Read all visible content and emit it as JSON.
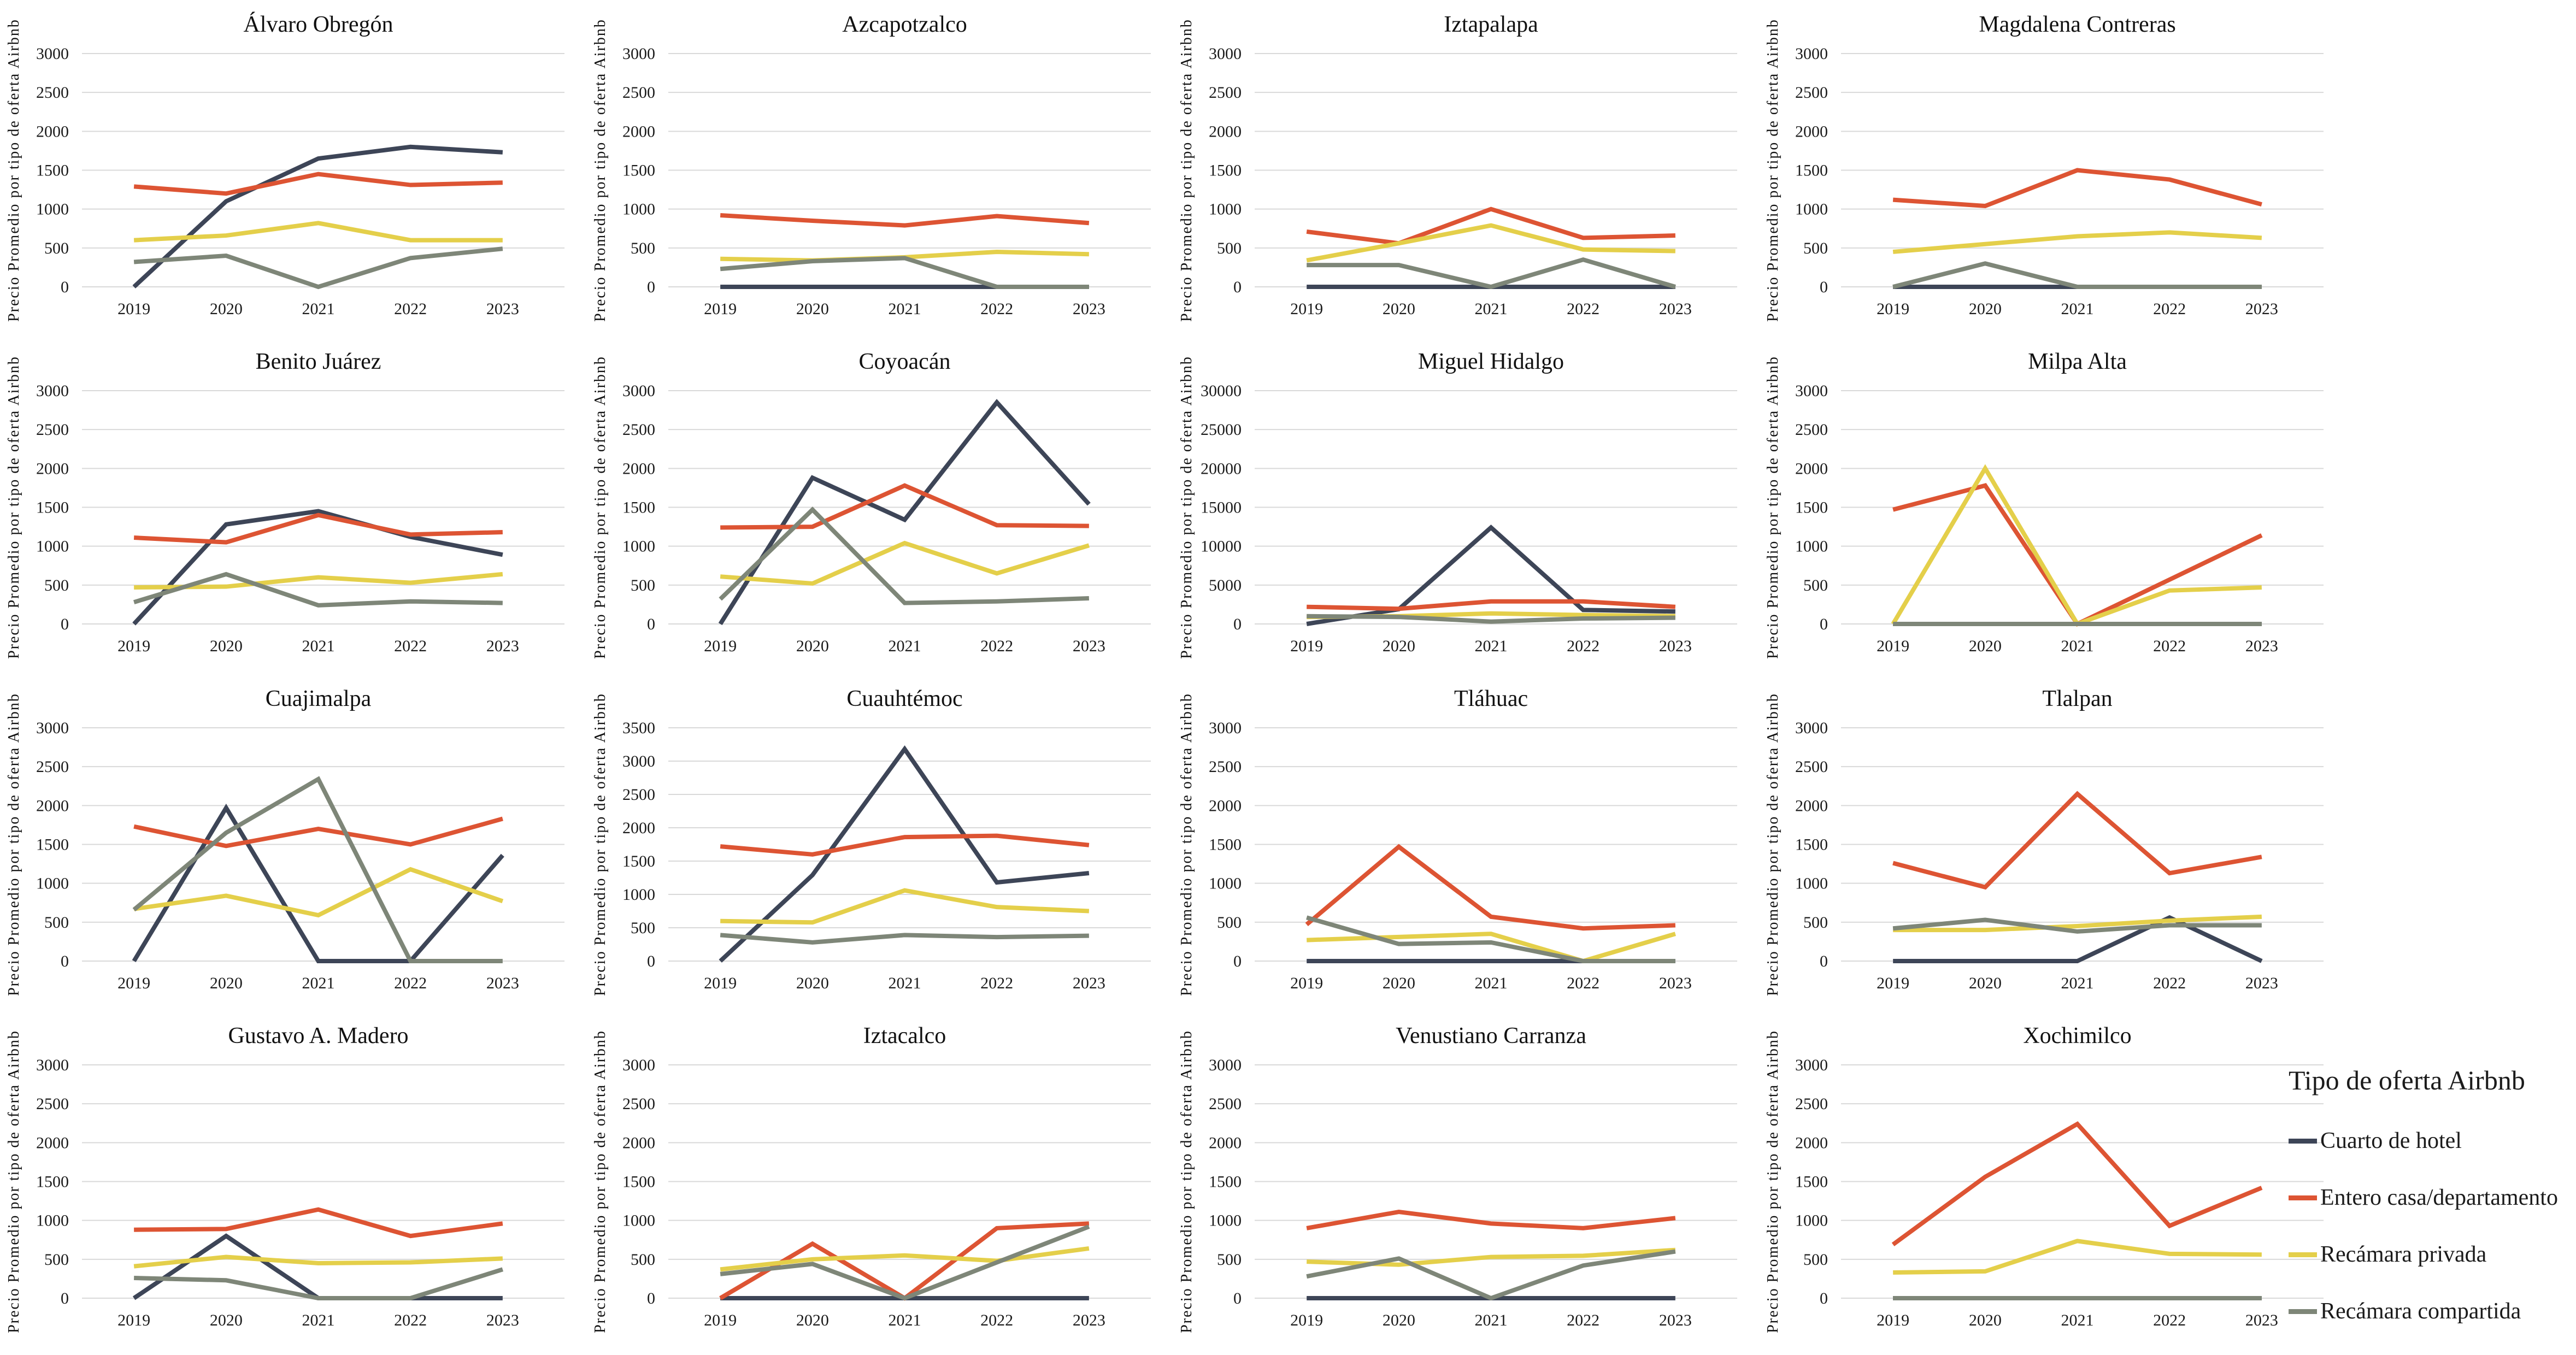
{
  "legend": {
    "title": "Tipo de oferta Airbnb",
    "position": "bottom-right",
    "items": [
      {
        "label": "Cuarto de hotel",
        "color": "#3d4557"
      },
      {
        "label": "Entero casa/departamento",
        "color": "#dd5433"
      },
      {
        "label": "Recámara privada",
        "color": "#e4cf4a"
      },
      {
        "label": "Recámara compartida",
        "color": "#7e8678"
      }
    ]
  },
  "axis": {
    "ylabel": "Precio Promedio por tipo de oferta Airbnb",
    "years": [
      "2019",
      "2020",
      "2021",
      "2022",
      "2023"
    ]
  },
  "style": {
    "gridline_color": "#d9d9d9",
    "text_color": "#1b1b1b",
    "grid": "horizontal"
  },
  "chart_data": [
    {
      "type": "line",
      "title": "Álvaro Obregón",
      "ylabel": "Precio Promedio por tipo de oferta Airbnb",
      "x": [
        2019,
        2020,
        2021,
        2022,
        2023
      ],
      "ylim": [
        0,
        3000
      ],
      "ytick": 500,
      "series": [
        {
          "name": "Cuarto de hotel",
          "values": [
            0,
            1100,
            1650,
            1800,
            1730
          ]
        },
        {
          "name": "Entero casa/departamento",
          "values": [
            1290,
            1200,
            1450,
            1310,
            1340
          ]
        },
        {
          "name": "Recámara privada",
          "values": [
            600,
            660,
            820,
            600,
            600
          ]
        },
        {
          "name": "Recámara compartida",
          "values": [
            320,
            400,
            0,
            370,
            490
          ]
        }
      ]
    },
    {
      "type": "line",
      "title": "Azcapotzalco",
      "ylabel": "Precio Promedio por tipo de oferta Airbnb",
      "x": [
        2019,
        2020,
        2021,
        2022,
        2023
      ],
      "ylim": [
        0,
        3000
      ],
      "ytick": 500,
      "series": [
        {
          "name": "Cuarto de hotel",
          "values": [
            0,
            0,
            0,
            0,
            0
          ]
        },
        {
          "name": "Entero casa/departamento",
          "values": [
            920,
            850,
            790,
            910,
            820
          ]
        },
        {
          "name": "Recámara privada",
          "values": [
            360,
            340,
            380,
            450,
            420
          ]
        },
        {
          "name": "Recámara compartida",
          "values": [
            230,
            330,
            370,
            0,
            0
          ]
        }
      ]
    },
    {
      "type": "line",
      "title": "Iztapalapa",
      "ylabel": "Precio Promedio por tipo de oferta Airbnb",
      "x": [
        2019,
        2020,
        2021,
        2022,
        2023
      ],
      "ylim": [
        0,
        3000
      ],
      "ytick": 500,
      "series": [
        {
          "name": "Cuarto de hotel",
          "values": [
            0,
            0,
            0,
            0,
            0
          ]
        },
        {
          "name": "Entero casa/departamento",
          "values": [
            710,
            560,
            1000,
            630,
            660
          ]
        },
        {
          "name": "Recámara privada",
          "values": [
            340,
            560,
            790,
            480,
            460
          ]
        },
        {
          "name": "Recámara compartida",
          "values": [
            280,
            280,
            0,
            350,
            0
          ]
        }
      ]
    },
    {
      "type": "line",
      "title": "Magdalena Contreras",
      "ylabel": "Precio Promedio por tipo de oferta Airbnb",
      "x": [
        2019,
        2020,
        2021,
        2022,
        2023
      ],
      "ylim": [
        0,
        3000
      ],
      "ytick": 500,
      "series": [
        {
          "name": "Cuarto de hotel",
          "values": [
            0,
            0,
            0,
            0,
            0
          ]
        },
        {
          "name": "Entero casa/departamento",
          "values": [
            1120,
            1040,
            1500,
            1380,
            1060
          ]
        },
        {
          "name": "Recámara privada",
          "values": [
            450,
            550,
            650,
            700,
            630
          ]
        },
        {
          "name": "Recámara compartida",
          "values": [
            0,
            300,
            0,
            0,
            0
          ]
        }
      ]
    },
    {
      "type": "line",
      "title": "Benito Juárez",
      "ylabel": "Precio Promedio por tipo de oferta Airbnb",
      "x": [
        2019,
        2020,
        2021,
        2022,
        2023
      ],
      "ylim": [
        0,
        3000
      ],
      "ytick": 500,
      "series": [
        {
          "name": "Cuarto de hotel",
          "values": [
            0,
            1280,
            1450,
            1120,
            890
          ]
        },
        {
          "name": "Entero casa/departamento",
          "values": [
            1110,
            1050,
            1400,
            1150,
            1180
          ]
        },
        {
          "name": "Recámara privada",
          "values": [
            470,
            480,
            600,
            530,
            640
          ]
        },
        {
          "name": "Recámara compartida",
          "values": [
            280,
            640,
            240,
            290,
            270
          ]
        }
      ]
    },
    {
      "type": "line",
      "title": "Coyoacán",
      "ylabel": "Precio Promedio por tipo de oferta Airbnb",
      "x": [
        2019,
        2020,
        2021,
        2022,
        2023
      ],
      "ylim": [
        0,
        3000
      ],
      "ytick": 500,
      "series": [
        {
          "name": "Cuarto de hotel",
          "values": [
            0,
            1880,
            1340,
            2850,
            1540
          ]
        },
        {
          "name": "Entero casa/departamento",
          "values": [
            1240,
            1250,
            1780,
            1270,
            1260
          ]
        },
        {
          "name": "Recámara privada",
          "values": [
            610,
            520,
            1040,
            650,
            1010
          ]
        },
        {
          "name": "Recámara compartida",
          "values": [
            320,
            1470,
            270,
            290,
            330
          ]
        }
      ]
    },
    {
      "type": "line",
      "title": "Miguel Hidalgo",
      "ylabel": "Precio Promedio por tipo de oferta Airbnb",
      "x": [
        2019,
        2020,
        2021,
        2022,
        2023
      ],
      "ylim": [
        0,
        30000
      ],
      "ytick": 5000,
      "series": [
        {
          "name": "Cuarto de hotel",
          "values": [
            0,
            1900,
            12400,
            1800,
            1600
          ]
        },
        {
          "name": "Entero casa/departamento",
          "values": [
            2200,
            1950,
            2900,
            2900,
            2200
          ]
        },
        {
          "name": "Recámara privada",
          "values": [
            900,
            1000,
            1350,
            1150,
            1000
          ]
        },
        {
          "name": "Recámara compartida",
          "values": [
            1000,
            900,
            300,
            700,
            800
          ]
        }
      ]
    },
    {
      "type": "line",
      "title": "Milpa Alta",
      "ylabel": "Precio Promedio por tipo de oferta Airbnb",
      "x": [
        2019,
        2020,
        2021,
        2022,
        2023
      ],
      "ylim": [
        0,
        3000
      ],
      "ytick": 500,
      "series": [
        {
          "name": "Cuarto de hotel",
          "values": [
            0,
            0,
            0,
            0,
            0
          ]
        },
        {
          "name": "Entero casa/departamento",
          "values": [
            1470,
            1780,
            0,
            570,
            1140
          ]
        },
        {
          "name": "Recámara privada",
          "values": [
            0,
            2000,
            0,
            430,
            470
          ]
        },
        {
          "name": "Recámara compartida",
          "values": [
            0,
            0,
            0,
            0,
            0
          ]
        }
      ]
    },
    {
      "type": "line",
      "title": "Cuajimalpa",
      "ylabel": "Precio Promedio por tipo de oferta Airbnb",
      "x": [
        2019,
        2020,
        2021,
        2022,
        2023
      ],
      "ylim": [
        0,
        3000
      ],
      "ytick": 500,
      "series": [
        {
          "name": "Cuarto de hotel",
          "values": [
            0,
            1970,
            0,
            0,
            1360
          ]
        },
        {
          "name": "Entero casa/departamento",
          "values": [
            1730,
            1480,
            1700,
            1500,
            1830
          ]
        },
        {
          "name": "Recámara privada",
          "values": [
            670,
            840,
            590,
            1180,
            770
          ]
        },
        {
          "name": "Recámara compartida",
          "values": [
            660,
            1650,
            2340,
            0,
            0
          ]
        }
      ]
    },
    {
      "type": "line",
      "title": "Cuauhtémoc",
      "ylabel": "Precio Promedio por tipo de oferta Airbnb",
      "x": [
        2019,
        2020,
        2021,
        2022,
        2023
      ],
      "ylim": [
        0,
        3500
      ],
      "ytick": 500,
      "series": [
        {
          "name": "Cuarto de hotel",
          "values": [
            0,
            1290,
            3180,
            1180,
            1320
          ]
        },
        {
          "name": "Entero casa/departamento",
          "values": [
            1720,
            1600,
            1860,
            1880,
            1740
          ]
        },
        {
          "name": "Recámara privada",
          "values": [
            600,
            580,
            1060,
            810,
            750
          ]
        },
        {
          "name": "Recámara compartida",
          "values": [
            390,
            280,
            390,
            360,
            380
          ]
        }
      ]
    },
    {
      "type": "line",
      "title": "Tláhuac",
      "ylabel": "Precio Promedio por tipo de oferta Airbnb",
      "x": [
        2019,
        2020,
        2021,
        2022,
        2023
      ],
      "ylim": [
        0,
        3000
      ],
      "ytick": 500,
      "series": [
        {
          "name": "Cuarto de hotel",
          "values": [
            0,
            0,
            0,
            0,
            0
          ]
        },
        {
          "name": "Entero casa/departamento",
          "values": [
            470,
            1470,
            570,
            420,
            460
          ]
        },
        {
          "name": "Recámara privada",
          "values": [
            270,
            310,
            350,
            0,
            350
          ]
        },
        {
          "name": "Recámara compartida",
          "values": [
            560,
            220,
            240,
            0,
            0
          ]
        }
      ]
    },
    {
      "type": "line",
      "title": "Tlalpan",
      "ylabel": "Precio Promedio por tipo de oferta Airbnb",
      "x": [
        2019,
        2020,
        2021,
        2022,
        2023
      ],
      "ylim": [
        0,
        3000
      ],
      "ytick": 500,
      "series": [
        {
          "name": "Cuarto de hotel",
          "values": [
            0,
            0,
            0,
            560,
            0
          ]
        },
        {
          "name": "Entero casa/departamento",
          "values": [
            1260,
            950,
            2150,
            1130,
            1340
          ]
        },
        {
          "name": "Recámara privada",
          "values": [
            400,
            400,
            450,
            520,
            570
          ]
        },
        {
          "name": "Recámara compartida",
          "values": [
            420,
            530,
            380,
            460,
            460
          ]
        }
      ]
    },
    {
      "type": "line",
      "title": "Gustavo A. Madero",
      "ylabel": "Precio Promedio por tipo de oferta Airbnb",
      "x": [
        2019,
        2020,
        2021,
        2022,
        2023
      ],
      "ylim": [
        0,
        3000
      ],
      "ytick": 500,
      "series": [
        {
          "name": "Cuarto de hotel",
          "values": [
            0,
            800,
            0,
            0,
            0
          ]
        },
        {
          "name": "Entero casa/departamento",
          "values": [
            880,
            890,
            1140,
            800,
            960
          ]
        },
        {
          "name": "Recámara privada",
          "values": [
            410,
            530,
            450,
            460,
            510
          ]
        },
        {
          "name": "Recámara compartida",
          "values": [
            260,
            230,
            0,
            0,
            370
          ]
        }
      ]
    },
    {
      "type": "line",
      "title": "Iztacalco",
      "ylabel": "Precio Promedio por tipo de oferta Airbnb",
      "x": [
        2019,
        2020,
        2021,
        2022,
        2023
      ],
      "ylim": [
        0,
        3000
      ],
      "ytick": 500,
      "series": [
        {
          "name": "Cuarto de hotel",
          "values": [
            0,
            0,
            0,
            0,
            0
          ]
        },
        {
          "name": "Entero casa/departamento",
          "values": [
            0,
            700,
            0,
            900,
            960
          ]
        },
        {
          "name": "Recámara privada",
          "values": [
            370,
            500,
            550,
            480,
            640
          ]
        },
        {
          "name": "Recámara compartida",
          "values": [
            310,
            440,
            0,
            460,
            920
          ]
        }
      ]
    },
    {
      "type": "line",
      "title": "Venustiano Carranza",
      "ylabel": "Precio Promedio por tipo de oferta Airbnb",
      "x": [
        2019,
        2020,
        2021,
        2022,
        2023
      ],
      "ylim": [
        0,
        3000
      ],
      "ytick": 500,
      "series": [
        {
          "name": "Cuarto de hotel",
          "values": [
            0,
            0,
            0,
            0,
            0
          ]
        },
        {
          "name": "Entero casa/departamento",
          "values": [
            900,
            1110,
            960,
            900,
            1030
          ]
        },
        {
          "name": "Recámara privada",
          "values": [
            470,
            430,
            530,
            545,
            620
          ]
        },
        {
          "name": "Recámara compartida",
          "values": [
            280,
            510,
            0,
            420,
            600
          ]
        }
      ]
    },
    {
      "type": "line",
      "title": "Xochimilco",
      "ylabel": "Precio Promedio por tipo de oferta Airbnb",
      "x": [
        2019,
        2020,
        2021,
        2022,
        2023
      ],
      "ylim": [
        0,
        3000
      ],
      "ytick": 500,
      "series": [
        {
          "name": "Cuarto de hotel",
          "values": [
            0,
            0,
            0,
            0,
            0
          ]
        },
        {
          "name": "Entero casa/departamento",
          "values": [
            690,
            1560,
            2240,
            930,
            1420
          ]
        },
        {
          "name": "Recámara privada",
          "values": [
            330,
            345,
            735,
            570,
            560
          ]
        },
        {
          "name": "Recámara compartida",
          "values": [
            0,
            0,
            0,
            0,
            0
          ]
        }
      ]
    }
  ]
}
